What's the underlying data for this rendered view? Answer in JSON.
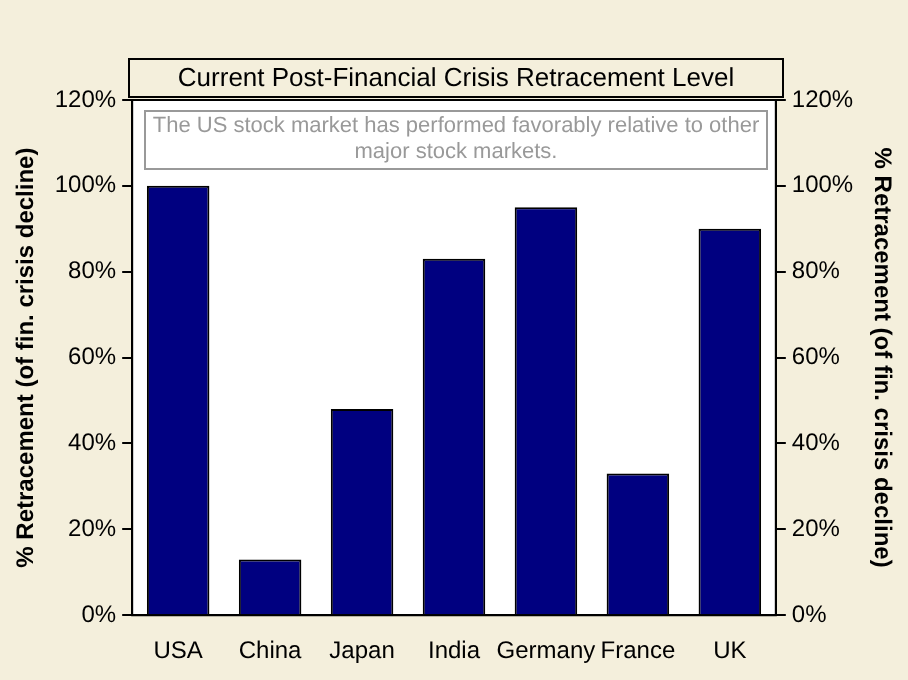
{
  "chart_data": {
    "type": "bar",
    "title": "Current Post-Financial Crisis Retracement Level",
    "categories": [
      "USA",
      "China",
      "Japan",
      "India",
      "Germany",
      "France",
      "UK"
    ],
    "values": [
      100,
      13,
      48,
      83,
      95,
      33,
      90
    ],
    "color": "#000080",
    "ylabel": "% Retracement (of fin. crisis decline)",
    "y2label": "% Retracement (of fin. crisis decline)",
    "ylim": [
      0,
      120
    ],
    "yticks": [
      {
        "value": 0,
        "label": "0%"
      },
      {
        "value": 20,
        "label": "20%"
      },
      {
        "value": 40,
        "label": "40%"
      },
      {
        "value": 60,
        "label": "60%"
      },
      {
        "value": 80,
        "label": "80%"
      },
      {
        "value": 100,
        "label": "100%"
      },
      {
        "value": 120,
        "label": "120%"
      }
    ],
    "y2lim": [
      0,
      120
    ],
    "y2ticks": [
      {
        "value": 0,
        "label": "0%"
      },
      {
        "value": 20,
        "label": "20%"
      },
      {
        "value": 40,
        "label": "40%"
      },
      {
        "value": 60,
        "label": "60%"
      },
      {
        "value": 80,
        "label": "80%"
      },
      {
        "value": 100,
        "label": "100%"
      },
      {
        "value": 120,
        "label": "120%"
      }
    ],
    "annotations": [
      "The US stock market has performed favorably relative to other major stock markets."
    ],
    "grid": false,
    "legend": false
  }
}
